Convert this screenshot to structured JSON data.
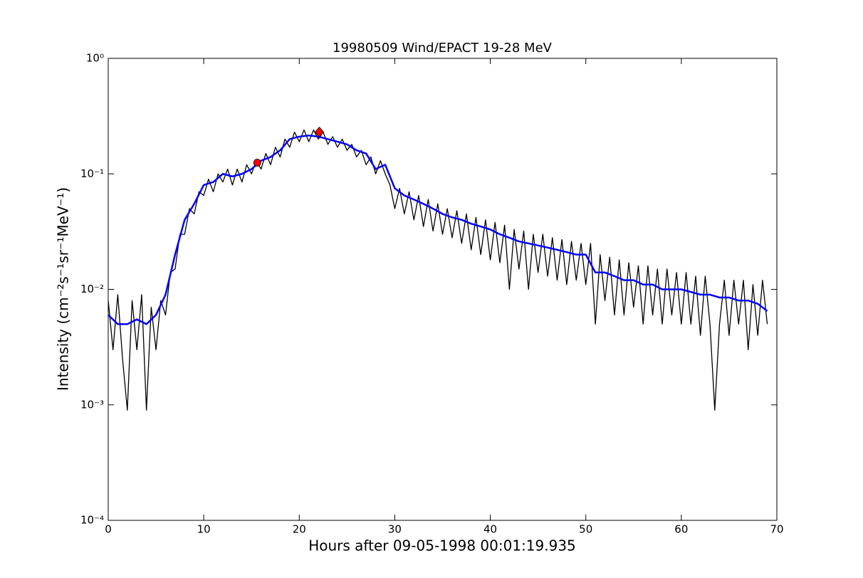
{
  "chart_data": {
    "type": "line",
    "title": "19980509 Wind/EPACT 19-28 MeV",
    "xlabel": "Hours after 09-05-1998 00:01:19.935",
    "ylabel": "Intensity (cm⁻²s⁻¹sr⁻¹MeV⁻¹)",
    "log_y": true,
    "xlim": [
      0,
      70
    ],
    "ylim": [
      0.0001,
      1
    ],
    "xticks": [
      0,
      10,
      20,
      30,
      40,
      50,
      60,
      70
    ],
    "yticks": [
      {
        "value": 0.0001,
        "label": "10⁻⁴"
      },
      {
        "value": 0.001,
        "label": "10⁻³"
      },
      {
        "value": 0.01,
        "label": "10⁻²"
      },
      {
        "value": 0.1,
        "label": "10⁻¹"
      },
      {
        "value": 1,
        "label": "10⁰"
      }
    ],
    "series": [
      {
        "color": "#000000",
        "x": [
          0,
          0.5,
          1,
          1.5,
          2,
          2.5,
          3,
          3.5,
          4,
          4.5,
          5,
          5.5,
          6,
          6.5,
          7,
          7.5,
          8,
          8.5,
          9,
          9.5,
          10,
          10.5,
          11,
          11.5,
          12,
          12.5,
          13,
          13.5,
          14,
          14.5,
          15,
          15.5,
          16,
          16.5,
          17,
          17.5,
          18,
          18.5,
          19,
          19.5,
          20,
          20.5,
          21,
          21.5,
          22,
          22.5,
          23,
          23.5,
          24,
          24.5,
          25,
          25.5,
          26,
          26.5,
          27,
          27.5,
          28,
          28.5,
          29,
          29.5,
          30,
          30.5,
          31,
          31.5,
          32,
          32.5,
          33,
          33.5,
          34,
          34.5,
          35,
          35.5,
          36,
          36.5,
          37,
          37.5,
          38,
          38.5,
          39,
          39.5,
          40,
          40.5,
          41,
          41.5,
          42,
          42.5,
          43,
          43.5,
          44,
          44.5,
          45,
          45.5,
          46,
          46.5,
          47,
          47.5,
          48,
          48.5,
          49,
          49.5,
          50,
          50.5,
          51,
          51.5,
          52,
          52.5,
          53,
          53.5,
          54,
          54.5,
          55,
          55.5,
          56,
          56.5,
          57,
          57.5,
          58,
          58.5,
          59,
          59.5,
          60,
          60.5,
          61,
          61.5,
          62,
          62.5,
          63,
          63.5,
          64,
          64.5,
          65,
          65.5,
          66,
          66.5,
          67,
          67.5,
          68,
          68.5,
          69
        ],
        "values": [
          0.008,
          0.003,
          0.009,
          0.0025,
          0.0009,
          0.008,
          0.003,
          0.009,
          0.0009,
          0.007,
          0.003,
          0.008,
          0.006,
          0.014,
          0.015,
          0.03,
          0.03,
          0.05,
          0.045,
          0.07,
          0.065,
          0.09,
          0.07,
          0.1,
          0.085,
          0.11,
          0.08,
          0.11,
          0.085,
          0.12,
          0.1,
          0.13,
          0.11,
          0.15,
          0.12,
          0.17,
          0.14,
          0.2,
          0.17,
          0.23,
          0.19,
          0.24,
          0.19,
          0.24,
          0.2,
          0.23,
          0.18,
          0.21,
          0.17,
          0.2,
          0.16,
          0.18,
          0.14,
          0.16,
          0.12,
          0.14,
          0.1,
          0.13,
          0.1,
          0.08,
          0.05,
          0.075,
          0.045,
          0.07,
          0.04,
          0.065,
          0.035,
          0.06,
          0.032,
          0.055,
          0.03,
          0.05,
          0.028,
          0.048,
          0.025,
          0.045,
          0.022,
          0.042,
          0.02,
          0.04,
          0.018,
          0.038,
          0.017,
          0.036,
          0.01,
          0.033,
          0.015,
          0.032,
          0.01,
          0.03,
          0.014,
          0.03,
          0.013,
          0.028,
          0.012,
          0.027,
          0.011,
          0.026,
          0.012,
          0.025,
          0.011,
          0.025,
          0.005,
          0.02,
          0.008,
          0.019,
          0.006,
          0.018,
          0.006,
          0.017,
          0.007,
          0.016,
          0.005,
          0.016,
          0.006,
          0.015,
          0.005,
          0.015,
          0.006,
          0.014,
          0.005,
          0.014,
          0.005,
          0.013,
          0.004,
          0.013,
          0.005,
          0.0009,
          0.005,
          0.012,
          0.004,
          0.012,
          0.005,
          0.012,
          0.003,
          0.011,
          0.004,
          0.012,
          0.005
        ]
      },
      {
        "color": "#0000ff",
        "x": [
          0,
          1,
          2,
          3,
          4,
          5,
          6,
          7,
          8,
          9,
          10,
          11,
          12,
          13,
          14,
          15,
          16,
          17,
          18,
          19,
          20,
          21,
          22,
          23,
          24,
          25,
          26,
          27,
          28,
          29,
          30,
          31,
          32,
          33,
          34,
          35,
          36,
          37,
          38,
          39,
          40,
          41,
          42,
          43,
          44,
          45,
          46,
          47,
          48,
          49,
          50,
          51,
          52,
          53,
          54,
          55,
          56,
          57,
          58,
          59,
          60,
          61,
          62,
          63,
          64,
          65,
          66,
          67,
          68,
          69
        ],
        "values": [
          0.006,
          0.005,
          0.005,
          0.0055,
          0.005,
          0.006,
          0.009,
          0.02,
          0.04,
          0.055,
          0.08,
          0.085,
          0.1,
          0.095,
          0.1,
          0.11,
          0.13,
          0.14,
          0.16,
          0.2,
          0.21,
          0.215,
          0.21,
          0.2,
          0.19,
          0.18,
          0.16,
          0.15,
          0.11,
          0.12,
          0.075,
          0.065,
          0.06,
          0.055,
          0.05,
          0.045,
          0.042,
          0.04,
          0.037,
          0.035,
          0.033,
          0.03,
          0.028,
          0.026,
          0.025,
          0.024,
          0.023,
          0.022,
          0.021,
          0.02,
          0.02,
          0.014,
          0.014,
          0.013,
          0.012,
          0.012,
          0.011,
          0.011,
          0.01,
          0.01,
          0.01,
          0.0095,
          0.009,
          0.009,
          0.0085,
          0.0085,
          0.008,
          0.008,
          0.0075,
          0.0065
        ]
      }
    ],
    "markers": [
      {
        "x": 15.6,
        "y": 0.125,
        "shape": "circle",
        "color": "#ff0000"
      },
      {
        "x": 22.1,
        "y": 0.23,
        "shape": "diamond",
        "color": "#ff0000"
      }
    ]
  }
}
